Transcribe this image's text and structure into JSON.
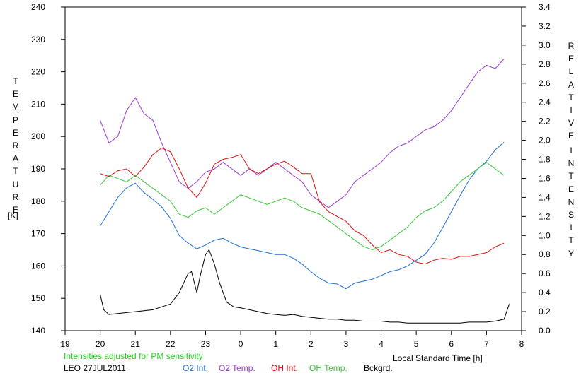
{
  "chart_data": {
    "type": "line",
    "xlabel": "Local Standard Time [h]",
    "ylabel_left": "TEMPERATURE",
    "ylabel_left_unit": "[K]",
    "ylabel_right": "RELATIVE INTENSITY",
    "xlim": [
      19,
      32
    ],
    "x_ticks": [
      19,
      20,
      21,
      22,
      23,
      24,
      25,
      26,
      27,
      28,
      29,
      30,
      31,
      32
    ],
    "x_tick_labels": [
      "19",
      "20",
      "21",
      "22",
      "23",
      "0",
      "1",
      "2",
      "3",
      "4",
      "5",
      "6",
      "7",
      "8"
    ],
    "ylim_left": [
      140,
      240
    ],
    "y_ticks_left": [
      "140",
      "150",
      "160",
      "170",
      "180",
      "190",
      "200",
      "210",
      "220",
      "230",
      "240"
    ],
    "ylim_right": [
      0,
      3.4
    ],
    "y_ticks_right": [
      "0.0",
      "0.2",
      "0.4",
      "0.6",
      "0.8",
      "1.0",
      "1.2",
      "1.4",
      "1.6",
      "1.8",
      "2.0",
      "2.2",
      "2.4",
      "2.6",
      "2.8",
      "3.0",
      "3.2",
      "3.4"
    ],
    "annotation": "Intensities adjusted for PM sensitivity",
    "site_date": "LEO 27JUL2011",
    "grid": false,
    "legend_position": "bottom",
    "series": [
      {
        "name": "O2 Int.",
        "axis": "right",
        "color": "#1f6fd6",
        "x": [
          20.0,
          20.25,
          20.5,
          20.75,
          21.0,
          21.25,
          21.5,
          21.75,
          22.0,
          22.25,
          22.5,
          22.75,
          23.0,
          23.25,
          23.5,
          23.75,
          24.0,
          24.25,
          24.5,
          24.75,
          25.0,
          25.25,
          25.5,
          25.75,
          26.0,
          26.25,
          26.5,
          26.75,
          27.0,
          27.25,
          27.5,
          27.75,
          28.0,
          28.25,
          28.5,
          28.75,
          29.0,
          29.25,
          29.5,
          29.75,
          30.0,
          30.25,
          30.5,
          30.75,
          31.0,
          31.25,
          31.5
        ],
        "values": [
          1.1,
          1.25,
          1.4,
          1.5,
          1.55,
          1.45,
          1.38,
          1.3,
          1.18,
          1.0,
          0.92,
          0.86,
          0.9,
          0.95,
          0.97,
          0.92,
          0.88,
          0.86,
          0.84,
          0.82,
          0.8,
          0.8,
          0.76,
          0.7,
          0.62,
          0.55,
          0.5,
          0.49,
          0.44,
          0.5,
          0.52,
          0.54,
          0.58,
          0.62,
          0.64,
          0.68,
          0.74,
          0.8,
          0.92,
          1.08,
          1.25,
          1.42,
          1.58,
          1.7,
          1.78,
          1.9,
          1.98
        ]
      },
      {
        "name": "O2 Temp.",
        "axis": "left",
        "color": "#9a3ad6",
        "x": [
          20.0,
          20.25,
          20.5,
          20.75,
          21.0,
          21.25,
          21.5,
          21.75,
          22.0,
          22.25,
          22.5,
          22.75,
          23.0,
          23.25,
          23.5,
          23.75,
          24.0,
          24.25,
          24.5,
          24.75,
          25.0,
          25.25,
          25.5,
          25.75,
          26.0,
          26.25,
          26.5,
          26.75,
          27.0,
          27.25,
          27.5,
          27.75,
          28.0,
          28.25,
          28.5,
          28.75,
          29.0,
          29.25,
          29.5,
          29.75,
          30.0,
          30.25,
          30.5,
          30.75,
          31.0,
          31.25,
          31.5
        ],
        "values": [
          205,
          198,
          200,
          208,
          212,
          207,
          205,
          198,
          192,
          186,
          184,
          186,
          189,
          190,
          192,
          190,
          188,
          190,
          188,
          190,
          192,
          190,
          188,
          186,
          182,
          180,
          178,
          180,
          182,
          186,
          188,
          190,
          192,
          195,
          197,
          198,
          200,
          202,
          203,
          205,
          208,
          212,
          216,
          220,
          222,
          221,
          224
        ]
      },
      {
        "name": "OH Int.",
        "axis": "right",
        "color": "#e01010",
        "x": [
          20.0,
          20.25,
          20.5,
          20.75,
          21.0,
          21.25,
          21.5,
          21.75,
          22.0,
          22.25,
          22.5,
          22.75,
          23.0,
          23.25,
          23.5,
          23.75,
          24.0,
          24.25,
          24.5,
          24.75,
          25.0,
          25.25,
          25.5,
          25.75,
          26.0,
          26.25,
          26.5,
          26.75,
          27.0,
          27.25,
          27.5,
          27.75,
          28.0,
          28.25,
          28.5,
          28.75,
          29.0,
          29.25,
          29.5,
          29.75,
          30.0,
          30.25,
          30.5,
          30.75,
          31.0,
          31.25,
          31.5
        ],
        "values": [
          1.65,
          1.62,
          1.68,
          1.7,
          1.62,
          1.72,
          1.85,
          1.92,
          1.88,
          1.7,
          1.5,
          1.4,
          1.55,
          1.75,
          1.8,
          1.82,
          1.85,
          1.7,
          1.65,
          1.7,
          1.75,
          1.78,
          1.72,
          1.65,
          1.65,
          1.35,
          1.25,
          1.2,
          1.15,
          1.05,
          1.0,
          0.9,
          0.82,
          0.85,
          0.8,
          0.78,
          0.72,
          0.7,
          0.74,
          0.76,
          0.75,
          0.78,
          0.78,
          0.8,
          0.82,
          0.88,
          0.92
        ]
      },
      {
        "name": "OH Temp.",
        "axis": "left",
        "color": "#3cc43c",
        "x": [
          20.0,
          20.25,
          20.5,
          20.75,
          21.0,
          21.25,
          21.5,
          21.75,
          22.0,
          22.25,
          22.5,
          22.75,
          23.0,
          23.25,
          23.5,
          23.75,
          24.0,
          24.25,
          24.5,
          24.75,
          25.0,
          25.25,
          25.5,
          25.75,
          26.0,
          26.25,
          26.5,
          26.75,
          27.0,
          27.25,
          27.5,
          27.75,
          28.0,
          28.25,
          28.5,
          28.75,
          29.0,
          29.25,
          29.5,
          29.75,
          30.0,
          30.25,
          30.5,
          30.75,
          31.0,
          31.25,
          31.5
        ],
        "values": [
          185,
          188,
          187,
          186,
          188,
          186,
          184,
          182,
          180,
          176,
          175,
          177,
          178,
          176,
          178,
          180,
          182,
          181,
          180,
          179,
          180,
          181,
          180,
          178,
          177,
          176,
          174,
          172,
          170,
          168,
          166,
          165,
          166,
          168,
          170,
          172,
          175,
          177,
          178,
          180,
          183,
          186,
          188,
          190,
          192,
          190,
          188
        ]
      },
      {
        "name": "Bckgrd.",
        "axis": "right",
        "color": "#000000",
        "x": [
          20.0,
          20.1,
          20.25,
          20.5,
          20.75,
          21.0,
          21.25,
          21.5,
          21.75,
          22.0,
          22.25,
          22.5,
          22.6,
          22.75,
          22.85,
          23.0,
          23.1,
          23.25,
          23.4,
          23.6,
          23.8,
          24.0,
          24.25,
          24.5,
          24.75,
          25.0,
          25.25,
          25.5,
          25.75,
          26.0,
          26.25,
          26.5,
          26.75,
          27.0,
          27.25,
          27.5,
          27.75,
          28.0,
          28.25,
          28.5,
          28.75,
          29.0,
          29.25,
          29.5,
          29.75,
          30.0,
          30.25,
          30.5,
          30.75,
          31.0,
          31.25,
          31.5,
          31.65
        ],
        "values": [
          0.38,
          0.22,
          0.17,
          0.18,
          0.19,
          0.2,
          0.21,
          0.22,
          0.25,
          0.28,
          0.4,
          0.6,
          0.62,
          0.4,
          0.58,
          0.8,
          0.85,
          0.7,
          0.5,
          0.3,
          0.25,
          0.24,
          0.22,
          0.2,
          0.18,
          0.17,
          0.16,
          0.17,
          0.15,
          0.14,
          0.13,
          0.12,
          0.12,
          0.11,
          0.11,
          0.1,
          0.1,
          0.1,
          0.09,
          0.09,
          0.08,
          0.08,
          0.08,
          0.08,
          0.08,
          0.08,
          0.08,
          0.09,
          0.09,
          0.09,
          0.1,
          0.12,
          0.28
        ]
      }
    ]
  }
}
